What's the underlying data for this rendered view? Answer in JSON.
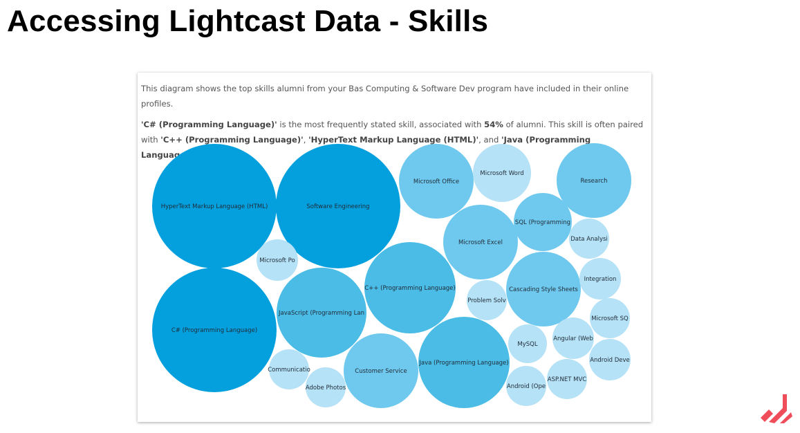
{
  "slide": {
    "title": "Accessing Lightcast Data - Skills"
  },
  "summary": {
    "intro": "This diagram shows the top skills alumni from your Bas Computing & Software Dev program have included in their online profiles.",
    "top_skill": "'C# (Programming Language)'",
    "mid1": " is the most frequently stated skill, associated with ",
    "percent": "54%",
    "mid2": " of alumni. This skill is often paired with ",
    "paired1": "'C++ (Programming Language)'",
    "sep1": ", ",
    "paired2": "'HyperText Markup Language (HTML)'",
    "sep2": ", and ",
    "paired3": "'Java (Programming Language)'",
    "end": "."
  },
  "colors": {
    "large": "#04a0de",
    "medium": "#4abce6",
    "small": "#6fc9ee",
    "tiny": "#b5e2f6",
    "logo": "#ef4d5a"
  },
  "skills": [
    "HyperText Markup Language (HTML)",
    "Software Engineering",
    "C# (Programming Language)",
    "JavaScript (Programming Lan",
    "C++ (Programming Language)",
    "Java (Programming Language)",
    "Microsoft Office",
    "Microsoft Word",
    "Research",
    "Microsoft Excel",
    "SQL (Programming",
    "Data Analysi",
    "Cascading Style Sheets",
    "Integration",
    "Microsoft Po",
    "Problem Solv",
    "Microsoft SQ",
    "Customer Service",
    "MySQL",
    "Angular (Web",
    "Communicatio",
    "Adobe Photos",
    "Android Deve",
    "ASP.NET MVC",
    "Android (Ope"
  ]
}
